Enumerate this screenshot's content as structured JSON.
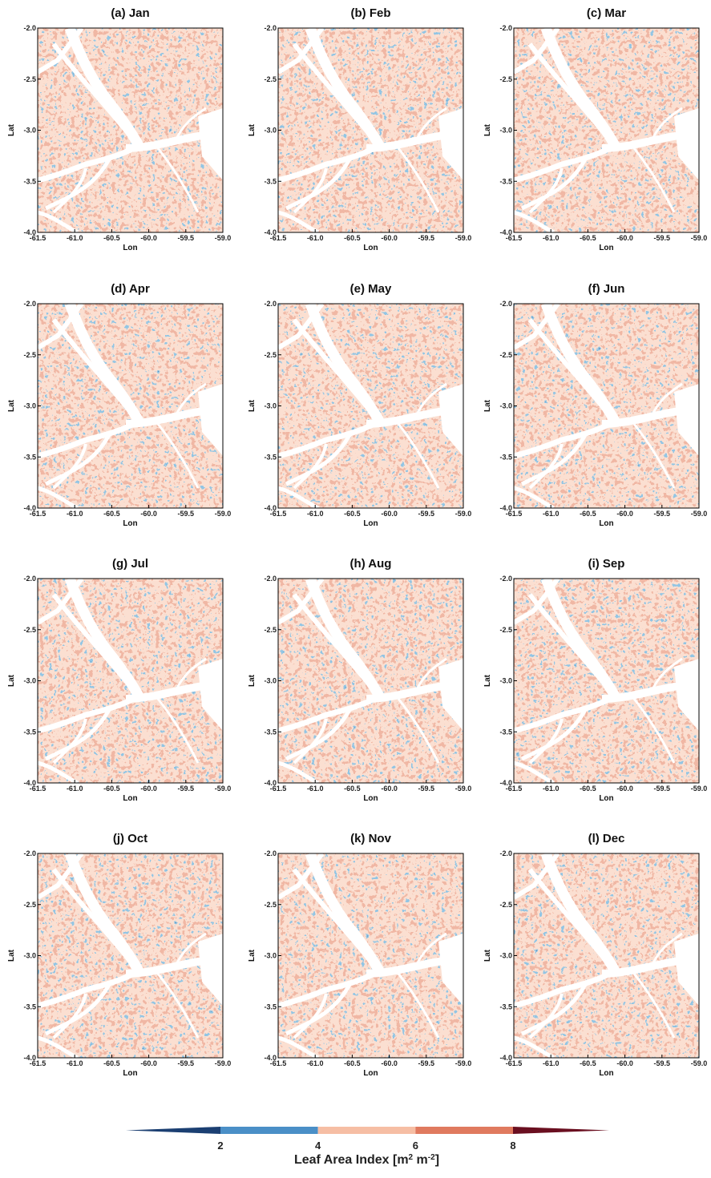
{
  "panels": [
    {
      "title": "(a) Jan"
    },
    {
      "title": "(b) Feb"
    },
    {
      "title": "(c) Mar"
    },
    {
      "title": "(d) Apr"
    },
    {
      "title": "(e) May"
    },
    {
      "title": "(f) Jun"
    },
    {
      "title": "(g) Jul"
    },
    {
      "title": "(h) Aug"
    },
    {
      "title": "(i) Sep"
    },
    {
      "title": "(j) Oct"
    },
    {
      "title": "(k) Nov"
    },
    {
      "title": "(l) Dec"
    }
  ],
  "x_label": "Lon",
  "y_label": "Lat",
  "xlim": [
    -61.5,
    -59.0
  ],
  "ylim": [
    -4.0,
    -2.0
  ],
  "xticks": [
    {
      "value": -61.5,
      "label": "-61.5"
    },
    {
      "value": -61,
      "label": "-61.0"
    },
    {
      "value": -60.5,
      "label": "-60.5"
    },
    {
      "value": -60,
      "label": "-60.0"
    },
    {
      "value": -59.5,
      "label": "-59.5"
    },
    {
      "value": -59,
      "label": "-59.0"
    }
  ],
  "yticks": [
    {
      "value": -2,
      "label": "-2.0"
    },
    {
      "value": -2.5,
      "label": "-2.5"
    },
    {
      "value": -3,
      "label": "-3.0"
    },
    {
      "value": -3.5,
      "label": "-3.5"
    },
    {
      "value": -4,
      "label": "-4.0"
    }
  ],
  "colorbar": {
    "ticks": [
      2,
      4,
      6,
      8
    ],
    "colors": [
      "#1b3f72",
      "#4a8fc7",
      "#f6bea4",
      "#e07a5f",
      "#6a0f20"
    ],
    "label_parts": [
      "Leaf Area Index [m",
      "2",
      " m",
      "-2",
      "]"
    ]
  }
}
